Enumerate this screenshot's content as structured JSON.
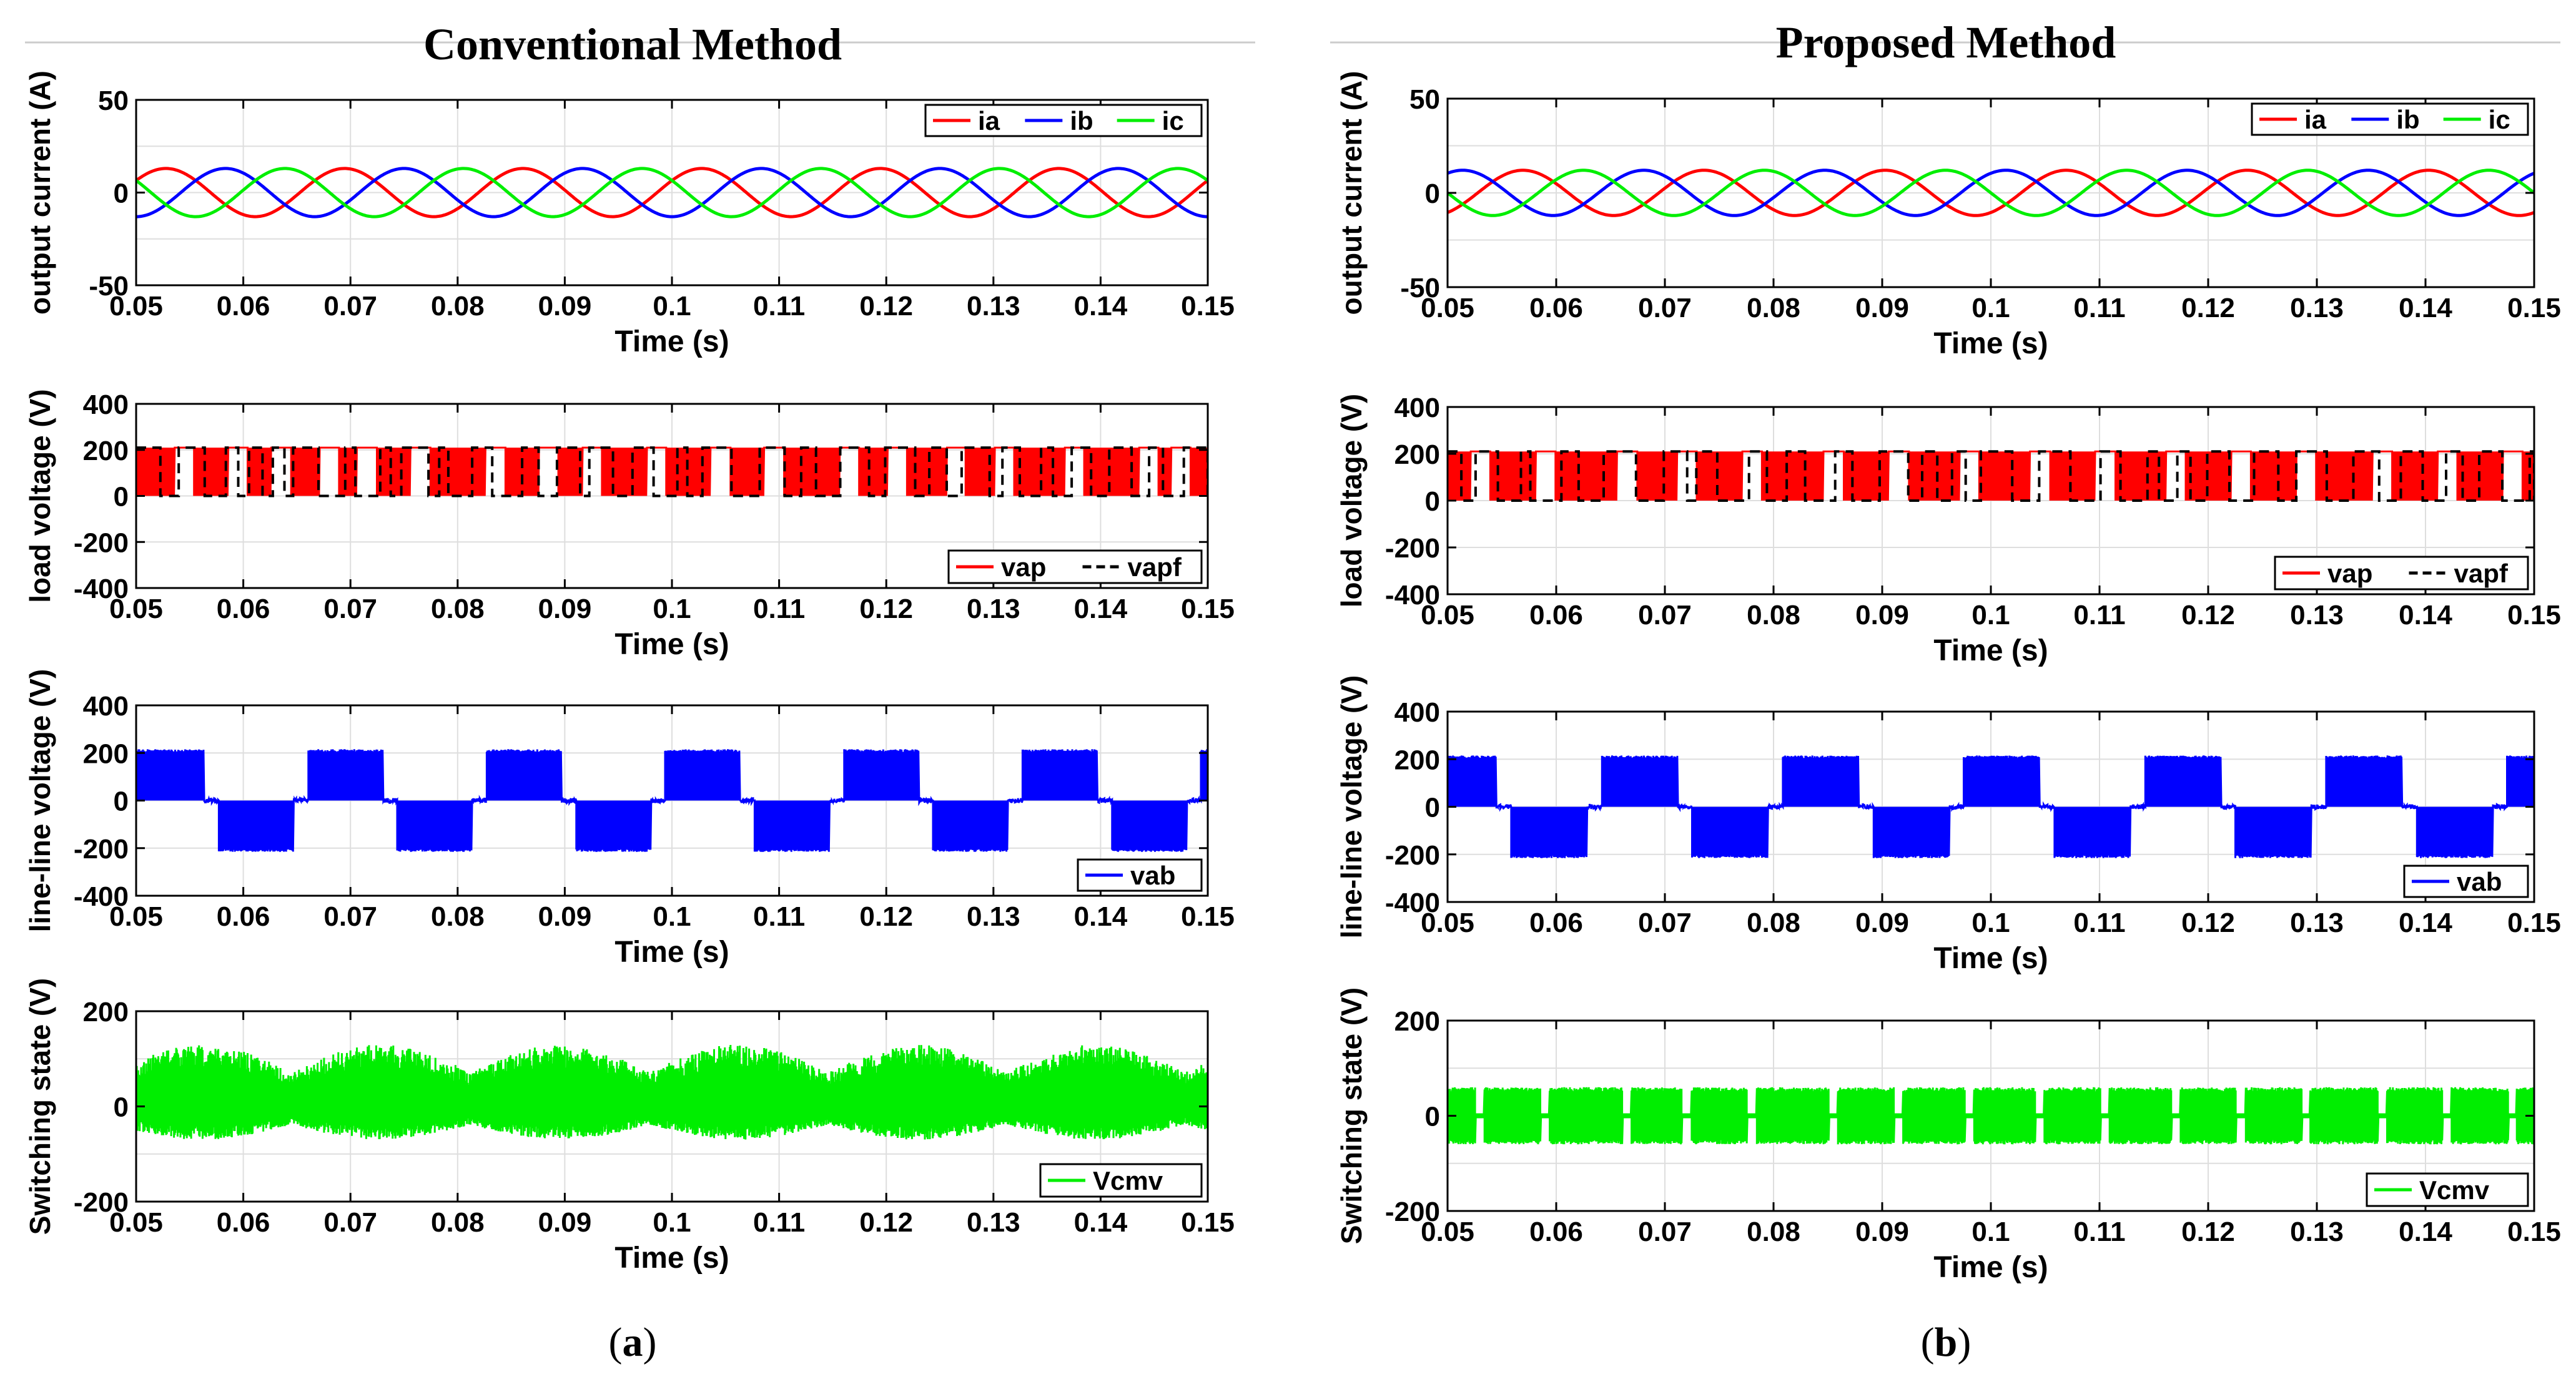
{
  "panels": [
    {
      "title": "Conventional Method",
      "caption_letter": "a"
    },
    {
      "title": "Proposed Method",
      "caption_letter": "b"
    }
  ],
  "chart_data": [
    {
      "id": "a1",
      "panel": "Conventional Method",
      "type": "line",
      "title": "",
      "xlabel": "Time (s)",
      "ylabel": "output current (A)",
      "xlim": [
        0.05,
        0.15
      ],
      "ylim": [
        -50,
        50
      ],
      "yticks": [
        -50,
        0,
        50
      ],
      "series": [
        {
          "name": "ia",
          "color": "#ff0000",
          "style": "solid",
          "waveform": "sine",
          "amplitude": 13,
          "frequency_hz": 60,
          "phase_deg": 30
        },
        {
          "name": "ib",
          "color": "#0000ff",
          "style": "solid",
          "waveform": "sine",
          "amplitude": 13,
          "frequency_hz": 60,
          "phase_deg": -90
        },
        {
          "name": "ic",
          "color": "#00ee00",
          "style": "solid",
          "waveform": "sine",
          "amplitude": 13,
          "frequency_hz": 60,
          "phase_deg": 150
        }
      ],
      "legend": "top-right"
    },
    {
      "id": "a2",
      "panel": "Conventional Method",
      "type": "line",
      "title": "",
      "xlabel": "Time (s)",
      "ylabel": "load voltage (V)",
      "xlim": [
        0.05,
        0.15
      ],
      "ylim": [
        -400,
        400
      ],
      "yticks": [
        -400,
        -200,
        0,
        200,
        400
      ],
      "series": [
        {
          "name": "vap",
          "color": "#ff0000",
          "style": "solid",
          "waveform": "pwm",
          "levels": [
            0,
            210
          ],
          "pattern": "conventional"
        },
        {
          "name": "vapf",
          "color": "#000000",
          "style": "dashed",
          "waveform": "pwm-envelope",
          "levels": [
            0,
            210
          ]
        }
      ],
      "legend": "bottom-right"
    },
    {
      "id": "a3",
      "panel": "Conventional Method",
      "type": "line",
      "title": "",
      "xlabel": "Time (s)",
      "ylabel": "line-line voltage (V)",
      "xlim": [
        0.05,
        0.15
      ],
      "ylim": [
        -400,
        400
      ],
      "yticks": [
        -400,
        -200,
        0,
        200,
        400
      ],
      "series": [
        {
          "name": "vab",
          "color": "#0000ff",
          "style": "solid",
          "waveform": "pwm3",
          "levels": [
            -220,
            0,
            220
          ],
          "pattern": "conventional"
        }
      ],
      "legend": "bottom-right"
    },
    {
      "id": "a4",
      "panel": "Conventional Method",
      "type": "line",
      "title": "",
      "xlabel": "Time (s)",
      "ylabel": "Switching state (V)",
      "xlim": [
        0.05,
        0.15
      ],
      "ylim": [
        -200,
        200
      ],
      "yticks": [
        -200,
        0,
        200
      ],
      "series": [
        {
          "name": "Vcmv",
          "color": "#00ee00",
          "style": "solid",
          "waveform": "noise-band",
          "band": [
            -70,
            130
          ],
          "pattern": "conventional"
        }
      ],
      "legend": "bottom-right"
    },
    {
      "id": "b1",
      "panel": "Proposed Method",
      "type": "line",
      "title": "",
      "xlabel": "Time (s)",
      "ylabel": "output current (A)",
      "xlim": [
        0.05,
        0.15
      ],
      "ylim": [
        -50,
        50
      ],
      "yticks": [
        -50,
        0,
        50
      ],
      "series": [
        {
          "name": "ia",
          "color": "#ff0000",
          "style": "solid",
          "waveform": "sine",
          "amplitude": 12,
          "frequency_hz": 60,
          "phase_deg": -60
        },
        {
          "name": "ib",
          "color": "#0000ff",
          "style": "solid",
          "waveform": "sine",
          "amplitude": 12,
          "frequency_hz": 60,
          "phase_deg": 60
        },
        {
          "name": "ic",
          "color": "#00ee00",
          "style": "solid",
          "waveform": "sine",
          "amplitude": 12,
          "frequency_hz": 60,
          "phase_deg": 180
        }
      ],
      "legend": "top-right"
    },
    {
      "id": "b2",
      "panel": "Proposed Method",
      "type": "line",
      "title": "",
      "xlabel": "Time (s)",
      "ylabel": "load voltage (V)",
      "xlim": [
        0.05,
        0.15
      ],
      "ylim": [
        -400,
        400
      ],
      "yticks": [
        -400,
        -200,
        0,
        200,
        400
      ],
      "series": [
        {
          "name": "vap",
          "color": "#ff0000",
          "style": "solid",
          "waveform": "pwm",
          "levels": [
            0,
            210
          ],
          "pattern": "proposed"
        },
        {
          "name": "vapf",
          "color": "#000000",
          "style": "dashed",
          "waveform": "pwm-envelope",
          "levels": [
            0,
            210
          ]
        }
      ],
      "legend": "bottom-right"
    },
    {
      "id": "b3",
      "panel": "Proposed Method",
      "type": "line",
      "title": "",
      "xlabel": "Time (s)",
      "ylabel": "line-line voltage (V)",
      "xlim": [
        0.05,
        0.15
      ],
      "ylim": [
        -400,
        400
      ],
      "yticks": [
        -400,
        -200,
        0,
        200,
        400
      ],
      "series": [
        {
          "name": "vab",
          "color": "#0000ff",
          "style": "solid",
          "waveform": "pwm3",
          "levels": [
            -220,
            0,
            220
          ],
          "pattern": "proposed"
        }
      ],
      "legend": "bottom-right"
    },
    {
      "id": "b4",
      "panel": "Proposed Method",
      "type": "line",
      "title": "",
      "xlabel": "Time (s)",
      "ylabel": "Switching state (V)",
      "xlim": [
        0.05,
        0.15
      ],
      "ylim": [
        -200,
        200
      ],
      "yticks": [
        -200,
        0,
        200
      ],
      "series": [
        {
          "name": "Vcmv",
          "color": "#00ee00",
          "style": "solid",
          "waveform": "noise-band",
          "band": [
            -60,
            60
          ],
          "pattern": "proposed"
        }
      ],
      "legend": "bottom-right"
    }
  ],
  "xticks": [
    0.05,
    0.06,
    0.07,
    0.08,
    0.09,
    0.1,
    0.11,
    0.12,
    0.13,
    0.14,
    0.15
  ],
  "xtick_labels": [
    "0.05",
    "0.06",
    "0.07",
    "0.08",
    "0.09",
    "0.1",
    "0.11",
    "0.12",
    "0.13",
    "0.14",
    "0.15"
  ]
}
